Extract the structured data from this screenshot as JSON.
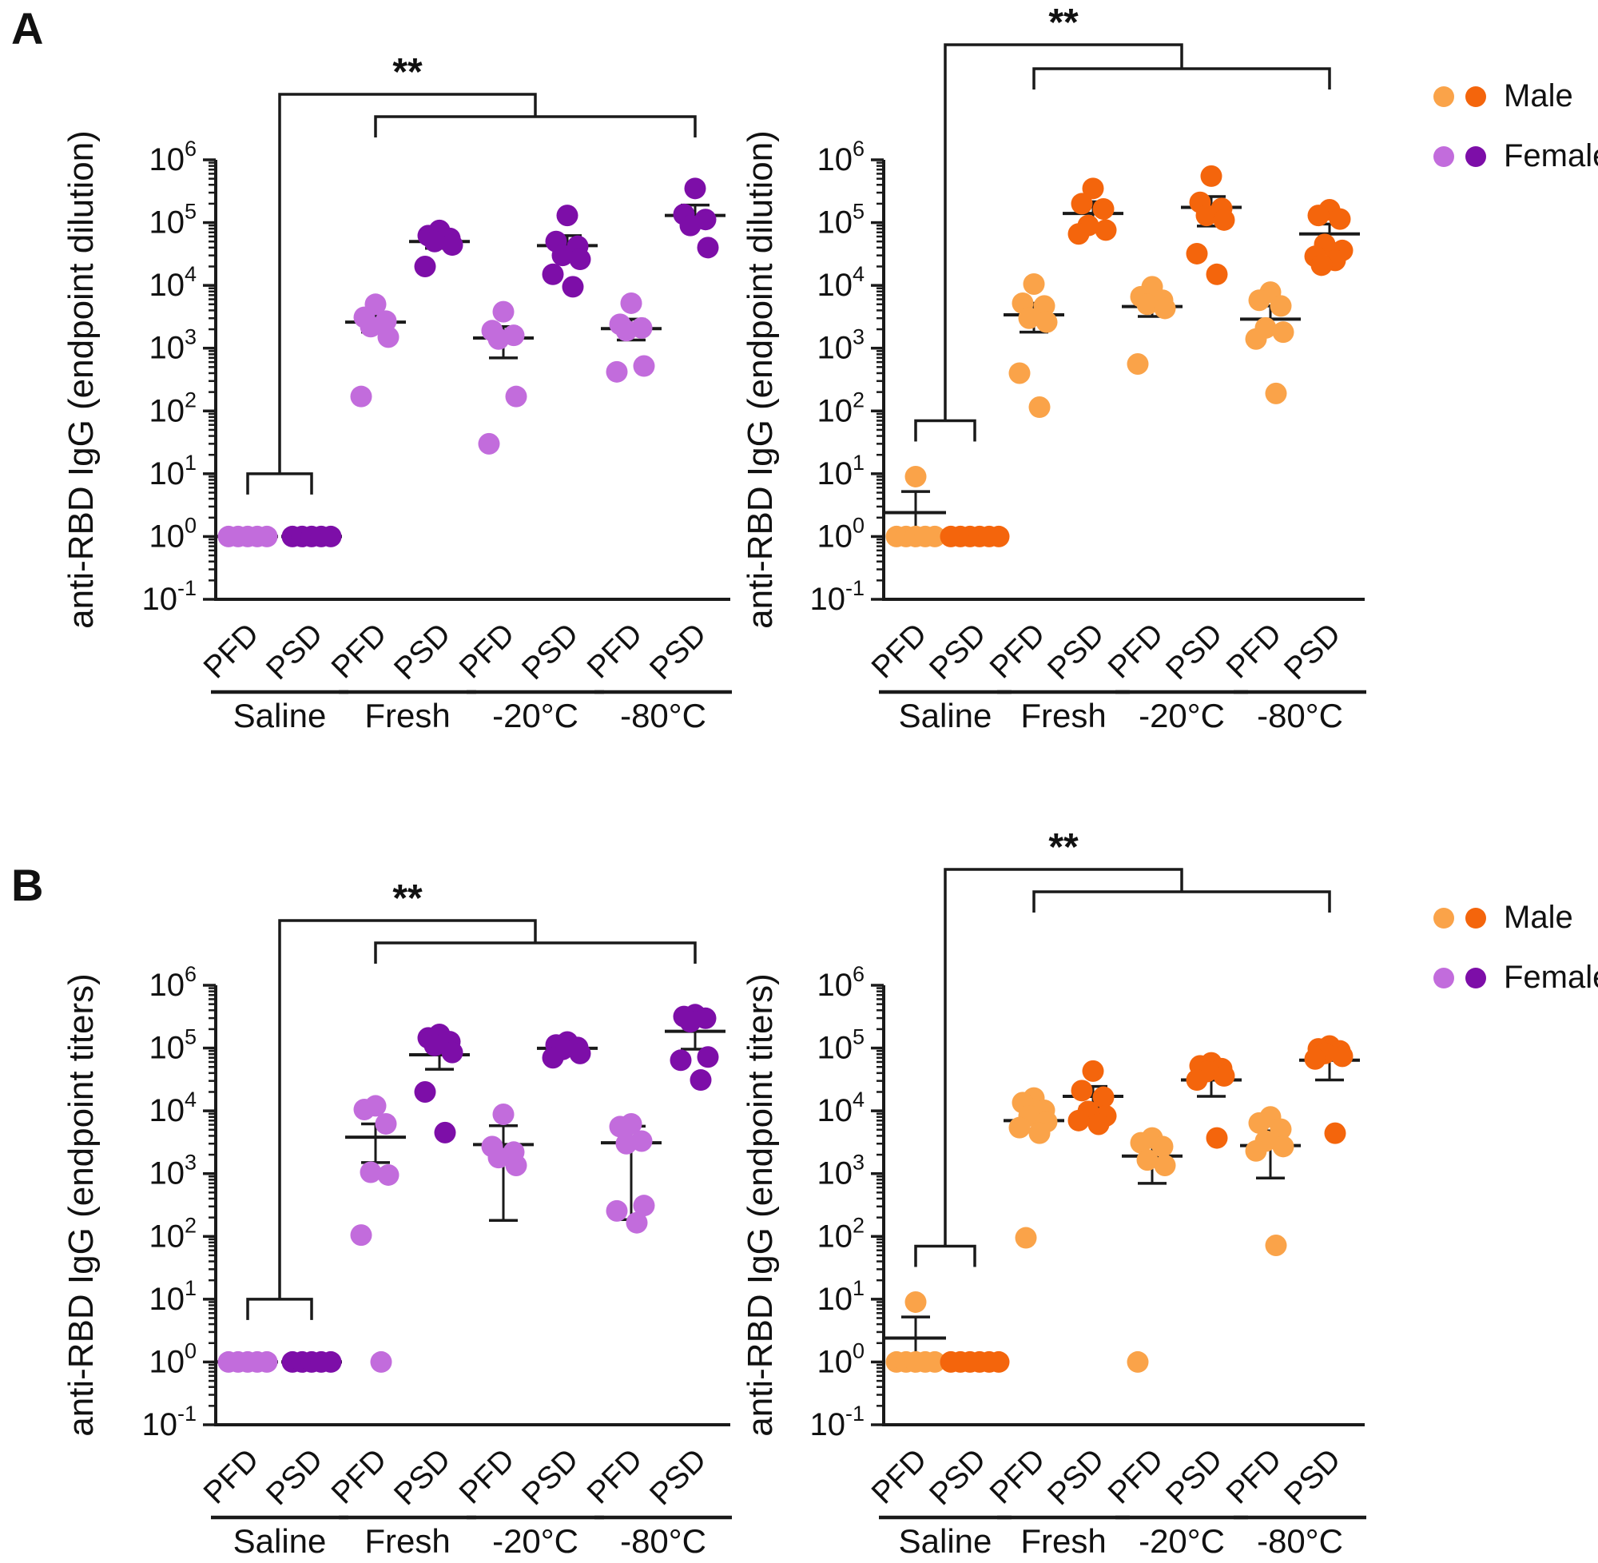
{
  "figure": {
    "panel_a_label": "A",
    "panel_b_label": "B",
    "legend": {
      "male": "Male",
      "female": "Female"
    },
    "colors": {
      "male_light": "#FAA349",
      "male_dark": "#F4650C",
      "female_light": "#C26CDC",
      "female_dark": "#7D0EA8",
      "axis": "#1a1a1a"
    }
  },
  "chart_data": [
    {
      "id": "A-left",
      "type": "scatter",
      "row": "A",
      "side": "left",
      "sex": "Female",
      "ylabel": "anti-RBD IgG (endpoint dilution)",
      "ylim_log10": [
        -1,
        6
      ],
      "y_tick_exponents": [
        -1,
        0,
        1,
        2,
        3,
        4,
        5,
        6
      ],
      "grid": false,
      "significance": {
        "label": "**",
        "compares": "Saline vs Fresh, -20°C, -80°C"
      },
      "groups": [
        "Saline",
        "Fresh",
        "-20°C",
        "-80°C"
      ],
      "columns": [
        {
          "label": "PFD",
          "group": "Saline",
          "shade": "light",
          "points": [
            1,
            1,
            1,
            1,
            1
          ],
          "mean": 1,
          "sem_lo": null,
          "sem_hi": null
        },
        {
          "label": "PSD",
          "group": "Saline",
          "shade": "dark",
          "points": [
            1,
            1,
            1,
            1,
            1
          ],
          "mean": 1,
          "sem_lo": null,
          "sem_hi": null
        },
        {
          "label": "PFD",
          "group": "Fresh",
          "shade": "light",
          "points": [
            5000,
            3100,
            2700,
            2200,
            1500,
            170
          ],
          "mean": 2600,
          "sem_lo": 1800,
          "sem_hi": 3400
        },
        {
          "label": "PSD",
          "group": "Fresh",
          "shade": "dark",
          "points": [
            75000,
            62000,
            56000,
            50000,
            44000,
            20000
          ],
          "mean": 50000,
          "sem_lo": 39000,
          "sem_hi": 64000
        },
        {
          "label": "PFD",
          "group": "-20°C",
          "shade": "light",
          "points": [
            3800,
            1900,
            1600,
            1400,
            170,
            30
          ],
          "mean": 1450,
          "sem_lo": 700,
          "sem_hi": 2200
        },
        {
          "label": "PSD",
          "group": "-20°C",
          "shade": "dark",
          "points": [
            130000,
            50000,
            42000,
            30000,
            26000,
            15000,
            9500
          ],
          "mean": 43000,
          "sem_lo": 27000,
          "sem_hi": 62000
        },
        {
          "label": "PFD",
          "group": "-80°C",
          "shade": "light",
          "points": [
            5200,
            2400,
            2100,
            1900,
            520,
            420
          ],
          "mean": 2050,
          "sem_lo": 1350,
          "sem_hi": 2900
        },
        {
          "label": "PSD",
          "group": "-80°C",
          "shade": "dark",
          "points": [
            350000,
            135000,
            112000,
            90000,
            40000
          ],
          "mean": 130000,
          "sem_lo": 92000,
          "sem_hi": 190000
        }
      ]
    },
    {
      "id": "A-right",
      "type": "scatter",
      "row": "A",
      "side": "right",
      "sex": "Male",
      "ylabel": "anti-RBD IgG (endpoint dilution)",
      "ylim_log10": [
        -1,
        6
      ],
      "y_tick_exponents": [
        -1,
        0,
        1,
        2,
        3,
        4,
        5,
        6
      ],
      "grid": false,
      "significance": {
        "label": "**",
        "compares": "Saline vs Fresh, -20°C, -80°C"
      },
      "groups": [
        "Saline",
        "Fresh",
        "-20°C",
        "-80°C"
      ],
      "columns": [
        {
          "label": "PFD",
          "group": "Saline",
          "shade": "light",
          "points": [
            9,
            1,
            1,
            1,
            1,
            1
          ],
          "mean": 2.4,
          "sem_lo": 1.15,
          "sem_hi": 5.2
        },
        {
          "label": "PSD",
          "group": "Saline",
          "shade": "dark",
          "points": [
            1,
            1,
            1,
            1,
            1,
            1
          ],
          "mean": 1,
          "sem_lo": null,
          "sem_hi": null
        },
        {
          "label": "PFD",
          "group": "Fresh",
          "shade": "light",
          "points": [
            10500,
            5200,
            4700,
            3000,
            2600,
            400,
            115
          ],
          "mean": 3400,
          "sem_lo": 1800,
          "sem_hi": 5200
        },
        {
          "label": "PSD",
          "group": "Fresh",
          "shade": "dark",
          "points": [
            350000,
            200000,
            165000,
            90000,
            76000,
            66000
          ],
          "mean": 140000,
          "sem_lo": 95000,
          "sem_hi": 215000
        },
        {
          "label": "PFD",
          "group": "-20°C",
          "shade": "light",
          "points": [
            9500,
            6600,
            5800,
            5000,
            4300,
            560
          ],
          "mean": 4600,
          "sem_lo": 3200,
          "sem_hi": 6200
        },
        {
          "label": "PSD",
          "group": "-20°C",
          "shade": "dark",
          "points": [
            550000,
            210000,
            168000,
            130000,
            110000,
            32000,
            15000
          ],
          "mean": 175000,
          "sem_lo": 88000,
          "sem_hi": 260000
        },
        {
          "label": "PFD",
          "group": "-80°C",
          "shade": "light",
          "points": [
            7800,
            5800,
            4700,
            2100,
            1800,
            1400,
            190
          ],
          "mean": 2900,
          "sem_lo": 1700,
          "sem_hi": 4700
        },
        {
          "label": "PSD",
          "group": "-80°C",
          "shade": "dark",
          "points": [
            160000,
            130000,
            114000,
            45000,
            36000,
            29000,
            25000,
            21000
          ],
          "mean": 66000,
          "sem_lo": 46000,
          "sem_hi": 95000
        }
      ]
    },
    {
      "id": "B-left",
      "type": "scatter",
      "row": "B",
      "side": "left",
      "sex": "Female",
      "ylabel": "anti-RBD IgG (endpoint titers)",
      "ylim_log10": [
        -1,
        6
      ],
      "y_tick_exponents": [
        -1,
        0,
        1,
        2,
        3,
        4,
        5,
        6
      ],
      "grid": false,
      "significance": {
        "label": "**",
        "compares": "Saline vs Fresh, -20°C, -80°C"
      },
      "groups": [
        "Saline",
        "Fresh",
        "-20°C",
        "-80°C"
      ],
      "columns": [
        {
          "label": "PFD",
          "group": "Saline",
          "shade": "light",
          "points": [
            1,
            1,
            1,
            1,
            1
          ],
          "mean": 1,
          "sem_lo": null,
          "sem_hi": null
        },
        {
          "label": "PSD",
          "group": "Saline",
          "shade": "dark",
          "points": [
            1,
            1,
            1,
            1,
            1
          ],
          "mean": 1,
          "sem_lo": null,
          "sem_hi": null
        },
        {
          "label": "PFD",
          "group": "Fresh",
          "shade": "light",
          "points": [
            12000,
            10500,
            6200,
            1050,
            950,
            105,
            1
          ],
          "mean": 3800,
          "sem_lo": 1500,
          "sem_hi": 6200
        },
        {
          "label": "PSD",
          "group": "Fresh",
          "shade": "dark",
          "points": [
            165000,
            145000,
            126000,
            110000,
            85000,
            20000,
            4500
          ],
          "mean": 78000,
          "sem_lo": 46000,
          "sem_hi": 120000
        },
        {
          "label": "PFD",
          "group": "-20°C",
          "shade": "light",
          "points": [
            8800,
            2700,
            2200,
            1800,
            1350
          ],
          "mean": 2900,
          "sem_lo": 180,
          "sem_hi": 5800
        },
        {
          "label": "PSD",
          "group": "-20°C",
          "shade": "dark",
          "points": [
            125000,
            112000,
            102000,
            95000,
            82000,
            70000
          ],
          "mean": 99000,
          "sem_lo": 80000,
          "sem_hi": 116000
        },
        {
          "label": "PFD",
          "group": "-80°C",
          "shade": "light",
          "points": [
            6200,
            5600,
            3300,
            3000,
            310,
            255,
            165
          ],
          "mean": 3100,
          "sem_lo": 185,
          "sem_hi": 5700
        },
        {
          "label": "PSD",
          "group": "-80°C",
          "shade": "dark",
          "points": [
            340000,
            318000,
            298000,
            262000,
            72000,
            64000,
            31000
          ],
          "mean": 185000,
          "sem_lo": 96000,
          "sem_hi": 285000
        }
      ]
    },
    {
      "id": "B-right",
      "type": "scatter",
      "row": "B",
      "side": "right",
      "sex": "Male",
      "ylabel": "anti-RBD IgG (endpoint titers)",
      "ylim_log10": [
        -1,
        6
      ],
      "y_tick_exponents": [
        -1,
        0,
        1,
        2,
        3,
        4,
        5,
        6
      ],
      "grid": false,
      "significance": {
        "label": "**",
        "compares": "Saline vs Fresh, -20°C, -80°C"
      },
      "groups": [
        "Saline",
        "Fresh",
        "-20°C",
        "-80°C"
      ],
      "columns": [
        {
          "label": "PFD",
          "group": "Saline",
          "shade": "light",
          "points": [
            9,
            1,
            1,
            1,
            1,
            1
          ],
          "mean": 2.4,
          "sem_lo": 1.15,
          "sem_hi": 5.2
        },
        {
          "label": "PSD",
          "group": "Saline",
          "shade": "dark",
          "points": [
            1,
            1,
            1,
            1,
            1,
            1
          ],
          "mean": 1,
          "sem_lo": null,
          "sem_hi": null
        },
        {
          "label": "PFD",
          "group": "Fresh",
          "shade": "light",
          "points": [
            16000,
            13500,
            10200,
            8300,
            6700,
            5400,
            4400,
            95
          ],
          "mean": 7000,
          "sem_lo": 5100,
          "sem_hi": 9300
        },
        {
          "label": "PSD",
          "group": "Fresh",
          "shade": "dark",
          "points": [
            43000,
            21000,
            16500,
            9800,
            8300,
            7000,
            6100
          ],
          "mean": 17000,
          "sem_lo": 11500,
          "sem_hi": 24500
        },
        {
          "label": "PFD",
          "group": "-20°C",
          "shade": "light",
          "points": [
            3700,
            3100,
            2700,
            1650,
            1350,
            1
          ],
          "mean": 1900,
          "sem_lo": 700,
          "sem_hi": 3100
        },
        {
          "label": "PSD",
          "group": "-20°C",
          "shade": "dark",
          "points": [
            58000,
            52000,
            47000,
            42000,
            36000,
            31000,
            3700
          ],
          "mean": 31000,
          "sem_lo": 17000,
          "sem_hi": 44000
        },
        {
          "label": "PFD",
          "group": "-80°C",
          "shade": "light",
          "points": [
            8000,
            6400,
            5100,
            3300,
            2700,
            2300,
            72
          ],
          "mean": 2800,
          "sem_lo": 850,
          "sem_hi": 4800
        },
        {
          "label": "PSD",
          "group": "-80°C",
          "shade": "dark",
          "points": [
            108000,
            97000,
            90000,
            82000,
            74000,
            67000,
            4400
          ],
          "mean": 64000,
          "sem_lo": 31000,
          "sem_hi": 92000
        }
      ]
    }
  ]
}
